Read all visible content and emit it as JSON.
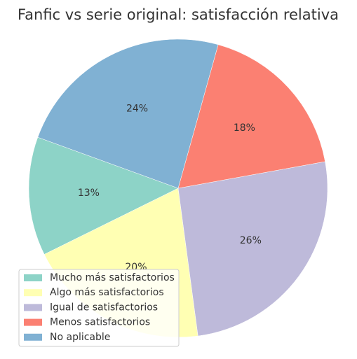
{
  "chart_data": {
    "type": "pie",
    "title": "Fanfic vs serie original: satisfacción relativa",
    "labels": [
      "Mucho más satisfactorios",
      "Algo más satisfactorios",
      "Igual de satisfactorios",
      "Menos satisfactorios",
      "No aplicable"
    ],
    "values": [
      13,
      20,
      26,
      18,
      24
    ],
    "value_labels": [
      "13%",
      "20%",
      "26%",
      "18%",
      "24%"
    ],
    "colors": [
      "#8dd3c7",
      "#ffffb3",
      "#bebada",
      "#fb8072",
      "#80b1d3"
    ],
    "start_angle": 160,
    "direction": "counterclockwise",
    "legend_position": "lower-left"
  }
}
